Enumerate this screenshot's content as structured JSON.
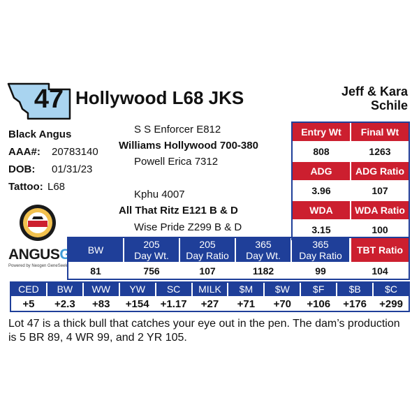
{
  "lot": {
    "number": "47",
    "name": "Hollywood L68 JKS"
  },
  "consignor": {
    "line1": "Jeff & Kara",
    "line2": "Schile"
  },
  "animal": {
    "breed": "Black Angus",
    "aaa_label": "AAA#:",
    "aaa_value": "20783140",
    "dob_label": "DOB:",
    "dob_value": "01/31/23",
    "tattoo_label": "Tattoo:",
    "tattoo_value": "L68"
  },
  "pedigree": {
    "sire_sire": "S S Enforcer E812",
    "sire": "Williams Hollywood 700-380",
    "sire_dam": "Powell Erica 7312",
    "dam_sire": "Kphu 4007",
    "dam": "All That Ritz E121 B & D",
    "dam_dam": "Wise Pride Z299 B & D"
  },
  "logos": {
    "angus_word": "ANGUS",
    "angus_gs": "GS",
    "angus_sub": "Powered by Neogen GeneSeek",
    "state_shape": "montana-state-icon",
    "badge": "certified-angus-badge-icon"
  },
  "performance": {
    "entry_wt_label": "Entry Wt",
    "final_wt_label": "Final Wt",
    "entry_wt": "808",
    "final_wt": "1263",
    "adg_label": "ADG",
    "adg_ratio_label": "ADG Ratio",
    "adg": "3.96",
    "adg_ratio": "107",
    "wda_label": "WDA",
    "wda_ratio_label": "WDA Ratio",
    "wda": "3.15",
    "wda_ratio": "100",
    "tbt_ratio_label": "TBT Ratio",
    "tbt_ratio": "104"
  },
  "weights": {
    "headers": [
      "BW",
      "205\nDay Wt.",
      "205\nDay Ratio",
      "365\nDay Wt.",
      "365\nDay Ratio"
    ],
    "values": [
      "81",
      "756",
      "107",
      "1182",
      "99"
    ]
  },
  "epds": {
    "headers": [
      "CED",
      "BW",
      "WW",
      "YW",
      "SC",
      "MILK",
      "$M",
      "$W",
      "$F",
      "$B",
      "$C"
    ],
    "values": [
      "+5",
      "+2.3",
      "+83",
      "+154",
      "+1.17",
      "+27",
      "+71",
      "+70",
      "+106",
      "+176",
      "+299"
    ]
  },
  "description": "Lot 47 is a thick bull that catches your eye out in the pen. The dam’s production is 5 BR 89, 4 WR 99, and 2 YR 105.",
  "colors": {
    "red": "#cc1f2f",
    "blue": "#1f3f99",
    "state_fill": "#a9d4f0"
  }
}
